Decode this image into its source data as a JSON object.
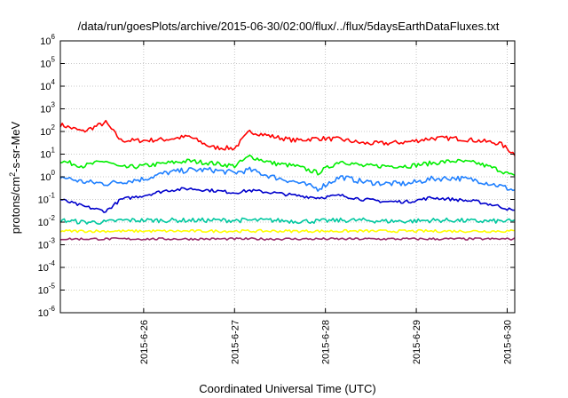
{
  "chart_data": {
    "type": "line",
    "title": "/data/run/goesPlots/archive/2015-06-30/02:00/flux/../flux/5daysEarthDataFluxes.txt",
    "xlabel": "Coordinated Universal Time (UTC)",
    "ylabel": "protons/cm²-s-sr-MeV",
    "ylabel_parts": [
      "protons/cm",
      "2",
      "-s-sr-MeV"
    ],
    "y_scale": "log",
    "ylim_exponents": [
      -6,
      6
    ],
    "y_tick_labels": [
      {
        "base": "10",
        "exp": "-6"
      },
      {
        "base": "10",
        "exp": "-5"
      },
      {
        "base": "10",
        "exp": "-4"
      },
      {
        "base": "10",
        "exp": "-3"
      },
      {
        "base": "10",
        "exp": "-2"
      },
      {
        "base": "10",
        "exp": "-1"
      },
      {
        "base": "10",
        "exp": "0"
      },
      {
        "base": "10",
        "exp": "1"
      },
      {
        "base": "10",
        "exp": "2"
      },
      {
        "base": "10",
        "exp": "3"
      },
      {
        "base": "10",
        "exp": "4"
      },
      {
        "base": "10",
        "exp": "5"
      },
      {
        "base": "10",
        "exp": "6"
      }
    ],
    "xlim": [
      "2015-06-25 02:00",
      "2015-06-30 02:00"
    ],
    "x_ticks": [
      "2015-6-26",
      "2015-6-27",
      "2015-6-28",
      "2015-6-29",
      "2015-6-30"
    ],
    "grid": true,
    "legend": "none",
    "x_dates": [
      "2015-06-25 02:00",
      "2015-06-25 08:00",
      "2015-06-25 14:00",
      "2015-06-25 18:00",
      "2015-06-26 00:00",
      "2015-06-26 06:00",
      "2015-06-26 12:00",
      "2015-06-26 18:00",
      "2015-06-27 00:00",
      "2015-06-27 04:00",
      "2015-06-27 10:00",
      "2015-06-27 16:00",
      "2015-06-27 22:00",
      "2015-06-28 04:00",
      "2015-06-28 10:00",
      "2015-06-28 16:00",
      "2015-06-28 22:00",
      "2015-06-29 04:00",
      "2015-06-29 10:00",
      "2015-06-29 16:00",
      "2015-06-29 22:00",
      "2015-06-30 02:00"
    ],
    "series": [
      {
        "color": "#ff0000",
        "values": [
          200,
          100,
          250,
          40,
          40,
          45,
          60,
          20,
          18,
          100,
          60,
          40,
          50,
          45,
          30,
          30,
          35,
          50,
          50,
          40,
          30,
          10
        ]
      },
      {
        "color": "#00ee00",
        "values": [
          5,
          3,
          5,
          2.5,
          3,
          4,
          5,
          4,
          3,
          8,
          4,
          3,
          1.5,
          5,
          3,
          3,
          3,
          4,
          5,
          4,
          2,
          1
        ]
      },
      {
        "color": "#1e7fff",
        "values": [
          1,
          0.6,
          0.5,
          0.6,
          0.8,
          1.5,
          2,
          2,
          1.5,
          2,
          1,
          0.6,
          0.3,
          1,
          0.6,
          0.5,
          0.5,
          0.8,
          0.9,
          0.7,
          0.4,
          0.25
        ]
      },
      {
        "color": "#0000cc",
        "values": [
          0.1,
          0.05,
          0.03,
          0.1,
          0.15,
          0.25,
          0.3,
          0.25,
          0.2,
          0.25,
          0.2,
          0.15,
          0.12,
          0.15,
          0.1,
          0.08,
          0.08,
          0.12,
          0.1,
          0.08,
          0.05,
          0.03
        ]
      },
      {
        "color": "#00c8a0",
        "values": [
          0.012,
          0.01,
          0.01,
          0.012,
          0.012,
          0.012,
          0.012,
          0.012,
          0.012,
          0.012,
          0.012,
          0.011,
          0.011,
          0.012,
          0.012,
          0.011,
          0.011,
          0.012,
          0.012,
          0.011,
          0.011,
          0.011
        ]
      },
      {
        "color": "#ffff00",
        "values": [
          0.004,
          0.004,
          0.004,
          0.004,
          0.004,
          0.004,
          0.004,
          0.004,
          0.004,
          0.004,
          0.004,
          0.004,
          0.004,
          0.004,
          0.004,
          0.004,
          0.004,
          0.004,
          0.004,
          0.004,
          0.004,
          0.004
        ]
      },
      {
        "color": "#9b2f6e",
        "values": [
          0.0018,
          0.0018,
          0.0018,
          0.0018,
          0.0018,
          0.0018,
          0.0018,
          0.0018,
          0.0018,
          0.0018,
          0.0018,
          0.0018,
          0.0018,
          0.0018,
          0.0018,
          0.0018,
          0.0018,
          0.0018,
          0.0018,
          0.0018,
          0.0018,
          0.0018
        ]
      }
    ]
  }
}
